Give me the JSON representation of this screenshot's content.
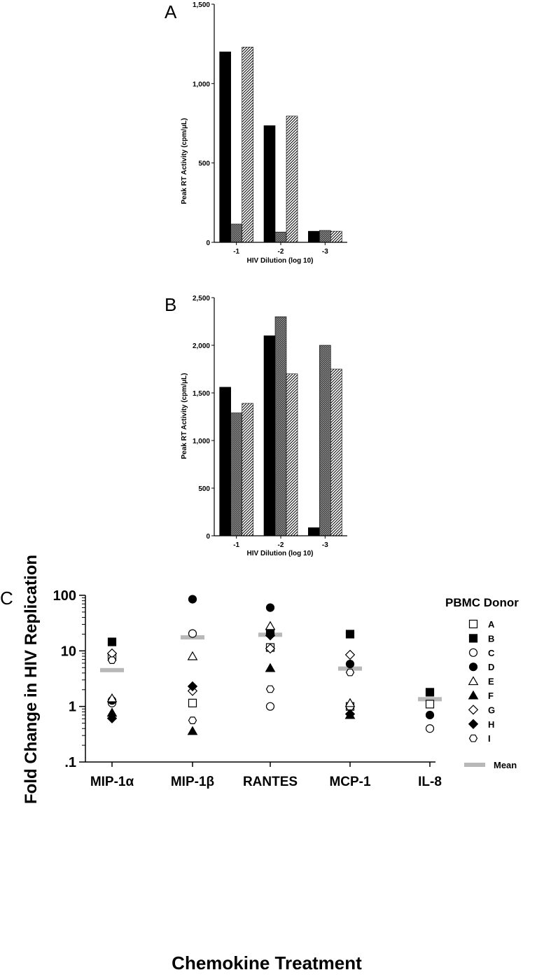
{
  "chart_data": [
    {
      "type": "bar",
      "panel_label": "A",
      "categories": [
        "-1",
        "-2",
        "-3"
      ],
      "series": [
        {
          "pattern": "solid",
          "values": [
            1200,
            735,
            70
          ]
        },
        {
          "pattern": "crosshatch",
          "values": [
            115,
            65,
            75
          ]
        },
        {
          "pattern": "diagonal",
          "values": [
            1230,
            795,
            70
          ]
        }
      ],
      "xlabel": "HIV Dilution (log 10)",
      "ylabel": "Peak RT Activity (cpm/μL)",
      "ylim": [
        0,
        1500
      ],
      "yticks": [
        0,
        500,
        1000,
        1500
      ],
      "ytick_labels": [
        "0",
        "500",
        "1,000",
        "1,500"
      ]
    },
    {
      "type": "bar",
      "panel_label": "B",
      "categories": [
        "-1",
        "-2",
        "-3"
      ],
      "series": [
        {
          "pattern": "solid",
          "values": [
            1560,
            2100,
            85
          ]
        },
        {
          "pattern": "crosshatch",
          "values": [
            1290,
            2300,
            2000
          ]
        },
        {
          "pattern": "diagonal",
          "values": [
            1390,
            1700,
            1750
          ]
        }
      ],
      "xlabel": "HIV Dilution (log 10)",
      "ylabel": "Peak RT Activity (cpm/μL)",
      "ylim": [
        0,
        2500
      ],
      "yticks": [
        0,
        500,
        1000,
        1500,
        2000,
        2500
      ],
      "ytick_labels": [
        "0",
        "500",
        "1,000",
        "1,500",
        "2,000",
        "2,500"
      ]
    },
    {
      "type": "scatter",
      "panel_label": "C",
      "scale": "log",
      "categories": [
        "MIP-1α",
        "MIP-1β",
        "RANTES",
        "MCP-1",
        "IL-8"
      ],
      "xlabel": "Chemokine Treatment",
      "ylabel": "Fold Change in HIV Replication",
      "ylim": [
        0.1,
        100
      ],
      "yticks": [
        0.1,
        1,
        10,
        100
      ],
      "ytick_labels": [
        ".1",
        "1",
        "10",
        "100"
      ],
      "legend_title": "PBMC Donor",
      "legend_position": "right",
      "mean_label": "Mean",
      "donors": [
        {
          "name": "A",
          "marker": "square-open",
          "values": [
            7.8,
            1.15,
            11.5,
            1.0,
            1.1
          ]
        },
        {
          "name": "B",
          "marker": "square-filled",
          "values": [
            14.5,
            null,
            21.5,
            20,
            1.8
          ]
        },
        {
          "name": "C",
          "marker": "circle-open",
          "values": [
            1.15,
            20.5,
            1.0,
            1.0,
            0.4
          ]
        },
        {
          "name": "D",
          "marker": "circle-filled",
          "values": [
            1.28,
            85,
            60,
            5.8,
            0.7
          ]
        },
        {
          "name": "E",
          "marker": "triangle-open",
          "values": [
            1.4,
            8.0,
            28,
            1.15,
            null
          ]
        },
        {
          "name": "F",
          "marker": "triangle-filled",
          "values": [
            0.77,
            0.36,
            4.9,
            0.7,
            null
          ]
        },
        {
          "name": "G",
          "marker": "diamond-open",
          "values": [
            9.0,
            1.9,
            11,
            8.5,
            null
          ]
        },
        {
          "name": "H",
          "marker": "diamond-filled",
          "values": [
            0.61,
            2.3,
            19,
            0.73,
            null
          ]
        },
        {
          "name": "I",
          "marker": "hexagon-open",
          "values": [
            6.8,
            0.56,
            2.05,
            4.1,
            null
          ]
        }
      ],
      "means": [
        4.5,
        17.5,
        19.5,
        4.8,
        1.35
      ],
      "colors": {
        "mean": "#b8b8b8",
        "ink": "#000000"
      }
    }
  ]
}
